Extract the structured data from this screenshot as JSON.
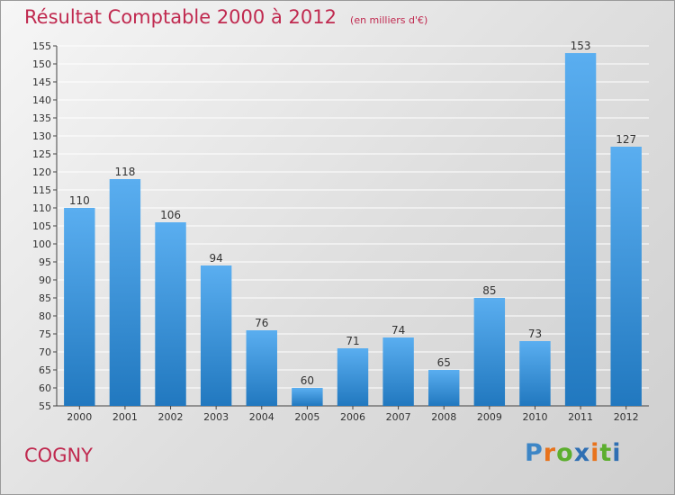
{
  "header": {
    "title": "Résultat Comptable 2000 à 2012",
    "subtitle": "(en milliers d'€)"
  },
  "footer": {
    "location": "COGNY",
    "logo": "Proxiti"
  },
  "colors": {
    "title": "#c0294f",
    "bar_top": "#5aaef0",
    "bar_bottom": "#2178bf",
    "grid": "#ffffff",
    "logo_letters": [
      "#3d86c6",
      "#e8731c",
      "#5cae2e",
      "#2f6fb3",
      "#e8731c",
      "#5cae2e",
      "#2f6fb3"
    ]
  },
  "chart_data": {
    "type": "bar",
    "title": "Résultat Comptable 2000 à 2012",
    "subtitle": "(en milliers d'€)",
    "categories": [
      "2000",
      "2001",
      "2002",
      "2003",
      "2004",
      "2005",
      "2006",
      "2007",
      "2008",
      "2009",
      "2010",
      "2011",
      "2012"
    ],
    "values": [
      110,
      118,
      106,
      94,
      76,
      60,
      71,
      74,
      65,
      85,
      73,
      153,
      127
    ],
    "ylim": [
      55,
      155
    ],
    "yticks": [
      55,
      60,
      65,
      70,
      75,
      80,
      85,
      90,
      95,
      100,
      105,
      110,
      115,
      120,
      125,
      130,
      135,
      140,
      145,
      150,
      155
    ],
    "grid": true,
    "data_labels": true,
    "legend": "none"
  }
}
